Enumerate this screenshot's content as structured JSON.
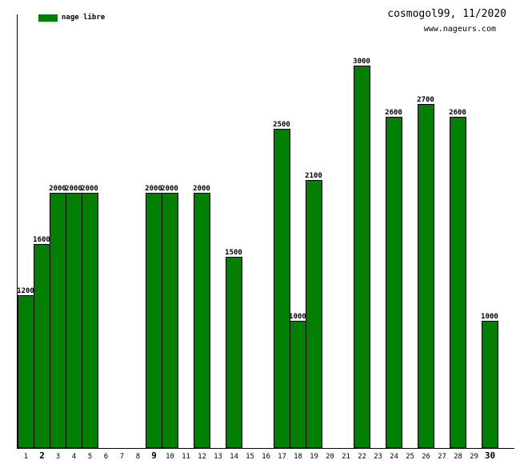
{
  "header": {
    "title": "cosmogol99, 11/2020",
    "website": "www.nageurs.com"
  },
  "legend": {
    "label": "nage libre",
    "swatch_color": "#008000",
    "position": "top-left"
  },
  "chart_data": {
    "type": "bar",
    "title": "cosmogol99, 11/2020",
    "series_label": "nage libre",
    "bar_color": "#008000",
    "bar_border_color": "#000000",
    "categories": [
      "1",
      "2",
      "3",
      "4",
      "5",
      "6",
      "7",
      "8",
      "9",
      "10",
      "11",
      "12",
      "13",
      "14",
      "15",
      "16",
      "17",
      "18",
      "19",
      "20",
      "21",
      "22",
      "23",
      "24",
      "25",
      "26",
      "27",
      "28",
      "29",
      "30"
    ],
    "values": [
      1200,
      1600,
      2000,
      2000,
      2000,
      null,
      null,
      null,
      2000,
      2000,
      null,
      2000,
      null,
      1500,
      null,
      null,
      2500,
      1000,
      2100,
      null,
      null,
      3000,
      null,
      2600,
      null,
      2700,
      null,
      2600,
      null,
      1000
    ],
    "emphasized_categories": [
      "2",
      "9",
      "30"
    ],
    "value_labels_shown": true,
    "ylim": [
      0,
      3400
    ],
    "y_ticks_shown": false,
    "grid": false,
    "legend_position": "top-left",
    "background_color": "#ffffff"
  }
}
